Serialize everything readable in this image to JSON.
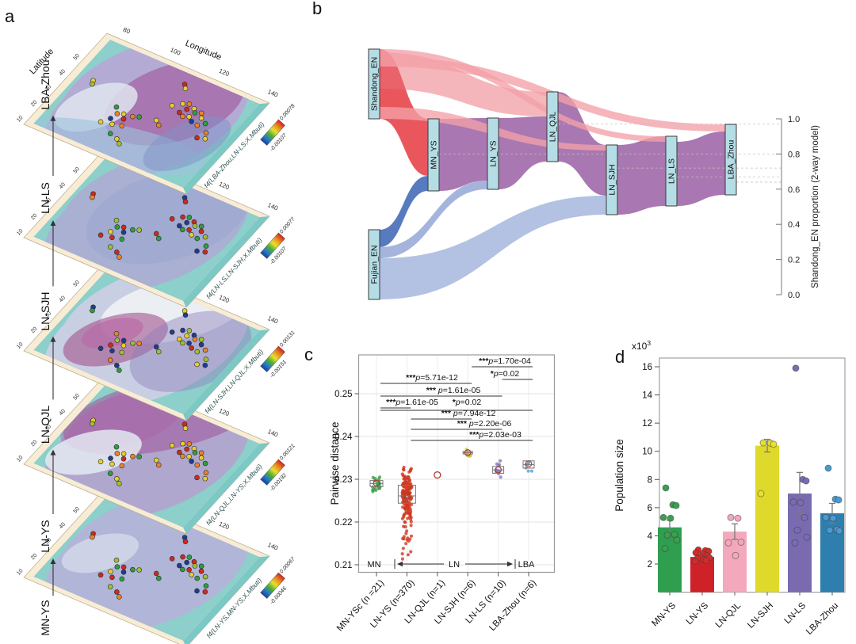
{
  "figure": {
    "panel_labels": {
      "a": "a",
      "b": "b",
      "c": "c",
      "d": "d"
    },
    "background": "#ffffff"
  },
  "panel_a": {
    "lat_label": "Latitude",
    "lon_label": "Longitude",
    "lat_ticks": [
      "10",
      "20",
      "30",
      "40",
      "50"
    ],
    "lon_ticks": [
      "80",
      "100",
      "120",
      "140"
    ],
    "maps": [
      {
        "label": "LBA-Zhou",
        "f4_label": "f4(LBA-Zhou,LN-LS;X,Mbuti)",
        "scale_max": "0.00078",
        "scale_min": "-0.00107"
      },
      {
        "label": "LN-LS",
        "f4_label": "f4(LN-LS,LN-SJH;X,Mbuti)",
        "scale_max": "0.00077",
        "scale_min": "-0.00107"
      },
      {
        "label": "LN-SJH",
        "f4_label": "f4(LN-SJH,LN-QJL;X,Mbuti)",
        "scale_max": "0.00131",
        "scale_min": "-0.00151"
      },
      {
        "label": "LN-QJL",
        "f4_label": "f4(LN-QJL,LN-YS;X,Mbuti)",
        "scale_max": "0.00121",
        "scale_min": "-0.00192"
      },
      {
        "label": "LN-YS",
        "f4_label": "f4(LN-YS,MN-YS;X,Mbuti)",
        "scale_max": "0.00067",
        "scale_min": "-0.00046"
      }
    ],
    "bottom_label": "MN-YS",
    "dot_palette": [
      "#e6cf28",
      "#e8832c",
      "#cc2a1e",
      "#2f9e3d",
      "#1f3d8c",
      "#a0c030"
    ],
    "sites": [
      [
        0.62,
        0.3,
        0
      ],
      [
        0.65,
        0.28,
        1
      ],
      [
        0.66,
        0.33,
        2
      ],
      [
        0.69,
        0.3,
        0
      ],
      [
        0.71,
        0.33,
        3
      ],
      [
        0.74,
        0.31,
        1
      ],
      [
        0.76,
        0.35,
        0
      ],
      [
        0.64,
        0.38,
        2
      ],
      [
        0.67,
        0.4,
        1
      ],
      [
        0.7,
        0.38,
        0
      ],
      [
        0.73,
        0.41,
        4
      ],
      [
        0.77,
        0.42,
        1
      ],
      [
        0.8,
        0.38,
        3
      ],
      [
        0.58,
        0.35,
        0
      ],
      [
        0.55,
        0.14,
        2
      ],
      [
        0.57,
        0.17,
        0
      ],
      [
        0.13,
        0.42,
        0
      ],
      [
        0.14,
        0.45,
        5
      ],
      [
        0.34,
        0.55,
        3
      ],
      [
        0.37,
        0.6,
        1
      ],
      [
        0.4,
        0.58,
        0
      ],
      [
        0.42,
        0.62,
        2
      ],
      [
        0.36,
        0.66,
        4
      ],
      [
        0.39,
        0.7,
        0
      ],
      [
        0.45,
        0.57,
        1
      ],
      [
        0.48,
        0.55,
        3
      ],
      [
        0.33,
        0.72,
        0
      ],
      [
        0.44,
        0.68,
        1
      ],
      [
        0.47,
        0.8,
        0
      ],
      [
        0.5,
        0.83,
        5
      ],
      [
        0.42,
        0.78,
        3
      ],
      [
        0.84,
        0.45,
        1
      ],
      [
        0.86,
        0.5,
        0
      ],
      [
        0.82,
        0.52,
        2
      ],
      [
        0.57,
        0.52,
        0
      ],
      [
        0.6,
        0.55,
        1
      ]
    ]
  },
  "chart_data": [
    {
      "id": "b",
      "type": "sankey",
      "nodes": [
        "Shandong_EN",
        "Fujian_EN",
        "MN_YS",
        "LN_YS",
        "LN_QJL",
        "LN_SJH",
        "LN_LS",
        "LBA_Zhou"
      ],
      "axis_label": "Shandong_EN proportion (2-way model)",
      "axis_ticks": [
        "0.0",
        "0.2",
        "0.4",
        "0.6",
        "0.8",
        "1.0"
      ],
      "proportion_markers": [
        0.97,
        0.8,
        0.72,
        0.67,
        0.64
      ],
      "links": [
        {
          "source": "MN_YS",
          "target": "LN_YS",
          "color_kind": "purple"
        },
        {
          "source": "LN_YS",
          "target": "LN_QJL",
          "color_kind": "purple"
        },
        {
          "source": "LN_QJL",
          "target": "LN_SJH",
          "color_kind": "purple"
        },
        {
          "source": "LN_SJH",
          "target": "LN_LS",
          "color_kind": "purple"
        },
        {
          "source": "LN_LS",
          "target": "LBA_Zhou",
          "color_kind": "purple"
        },
        {
          "source": "Fujian_EN",
          "target": "MN_YS",
          "color_kind": "blue_dark"
        },
        {
          "source": "Fujian_EN",
          "target": "LN_YS",
          "color_kind": "blue_mid"
        },
        {
          "source": "Fujian_EN",
          "target": "LN_SJH",
          "color_kind": "blue_light"
        },
        {
          "source": "Shandong_EN",
          "target": "MN_YS",
          "color_kind": "red_dark"
        },
        {
          "source": "Shandong_EN",
          "target": "LN_QJL",
          "color_kind": "red_mid"
        },
        {
          "source": "Shandong_EN",
          "target": "LN_SJH",
          "color_kind": "red_light"
        },
        {
          "source": "Shandong_EN",
          "target": "LN_LS",
          "color_kind": "red_light"
        },
        {
          "source": "Shandong_EN",
          "target": "LBA_Zhou",
          "color_kind": "red_light"
        }
      ]
    },
    {
      "id": "c",
      "type": "box-scatter",
      "ylabel": "Pairwise distance",
      "yticks": [
        "0.21",
        "0.22",
        "0.23",
        "0.24",
        "0.25"
      ],
      "period_labels": {
        "mn": "MN",
        "ln": "LN",
        "lba": "LBA"
      },
      "categories": [
        "MN-YSc (n =21)",
        "LN-YS (n=370)",
        "LN-QJL (n=1)",
        "LN-SJH (n=6)",
        "LN-LS (n=10)",
        "LBA-Zhou (n=6)"
      ],
      "boxes": [
        {
          "n": 21,
          "color": "#3f9e4a",
          "q1": 0.2283,
          "q3": 0.2297,
          "median": 0.229,
          "mean": 0.2291,
          "lo": 0.2245,
          "hi": 0.2325
        },
        {
          "n": 370,
          "color": "#d0391f",
          "q1": 0.2244,
          "q3": 0.2286,
          "median": 0.2261,
          "mean": 0.2262,
          "lo": 0.2105,
          "hi": 0.2335
        },
        {
          "n": 1,
          "color": "#c0392b",
          "single": 0.231
        },
        {
          "n": 6,
          "color": "#cfc832",
          "q1": 0.2359,
          "q3": 0.2365,
          "median": 0.2362,
          "mean": 0.2362,
          "lo": 0.2354,
          "hi": 0.237
        },
        {
          "n": 10,
          "color": "#8277c0",
          "q1": 0.2314,
          "q3": 0.233,
          "median": 0.2322,
          "mean": 0.2322,
          "lo": 0.229,
          "hi": 0.2346
        },
        {
          "n": 6,
          "color": "#5b9bd5",
          "q1": 0.2326,
          "q3": 0.2343,
          "median": 0.2334,
          "mean": 0.2336,
          "lo": 0.23,
          "hi": 0.236
        }
      ],
      "pvalues": [
        {
          "stars": "***",
          "p": "p=1.70e-04",
          "from": 3,
          "to": 5
        },
        {
          "stars": "*",
          "p": "p=0.02",
          "from": 4,
          "to": 5
        },
        {
          "stars": "***",
          "p": "p=5.71e-12",
          "from": 0,
          "to": 3
        },
        {
          "stars": "*** ",
          "p": "p=1.61e-05",
          "from": 0,
          "to": 4
        },
        {
          "stars": "***",
          "p": "p=1.61e-05",
          "from": 0,
          "to": 1
        },
        {
          "stars": "*",
          "p": "p=0.02",
          "from": 0,
          "to": 5
        },
        {
          "stars": "*** ",
          "p": "p=7.94e-12",
          "from": 1,
          "to": 3
        },
        {
          "stars": "*** ",
          "p": "p=2.20e-06",
          "from": 1,
          "to": 4
        },
        {
          "stars": "***",
          "p": "p=2.03e-03",
          "from": 1,
          "to": 5
        }
      ]
    },
    {
      "id": "d",
      "type": "bar",
      "ylabel": "Population size",
      "unit_label": "x10",
      "unit_exp": "3",
      "yticks": [
        "2",
        "4",
        "6",
        "8",
        "10",
        "12",
        "14",
        "16"
      ],
      "categories": [
        "MN-YS",
        "LN-YS",
        "LN-QJL",
        "LN-SJH",
        "LN-LS",
        "LBA-Zhou"
      ],
      "values": [
        4.6,
        2.5,
        4.3,
        10.4,
        7.0,
        5.6
      ],
      "errors": [
        0.5,
        0.18,
        0.55,
        0.45,
        1.5,
        0.7
      ],
      "colors": [
        "#2f9e4f",
        "#cf2228",
        "#f3a8bc",
        "#dfd92b",
        "#7a6ab0",
        "#2f7fae"
      ],
      "point_colors": [
        "#3aa050",
        "#d52a2a",
        "#f3a8bc",
        "#e6e032",
        "#7a6cb4",
        "#4a9ad4"
      ],
      "points": [
        [
          7.4,
          6.2,
          6.15,
          5.3,
          5.25,
          4.1,
          4.05,
          3.7,
          3.1
        ],
        [
          3.0,
          2.95,
          2.9,
          2.8,
          2.7,
          2.6,
          2.5,
          2.45,
          2.4,
          2.3,
          2.25,
          2.2
        ],
        [
          5.3,
          5.25,
          3.55,
          3.5,
          2.6
        ],
        [
          10.6,
          10.58,
          10.5,
          7.0
        ],
        [
          15.9,
          8.0,
          7.9,
          6.4,
          6.35,
          5.3,
          4.4,
          3.9,
          3.5
        ],
        [
          8.8,
          6.6,
          6.55,
          5.3,
          5.25,
          4.45,
          4.4,
          4.35
        ]
      ]
    }
  ]
}
